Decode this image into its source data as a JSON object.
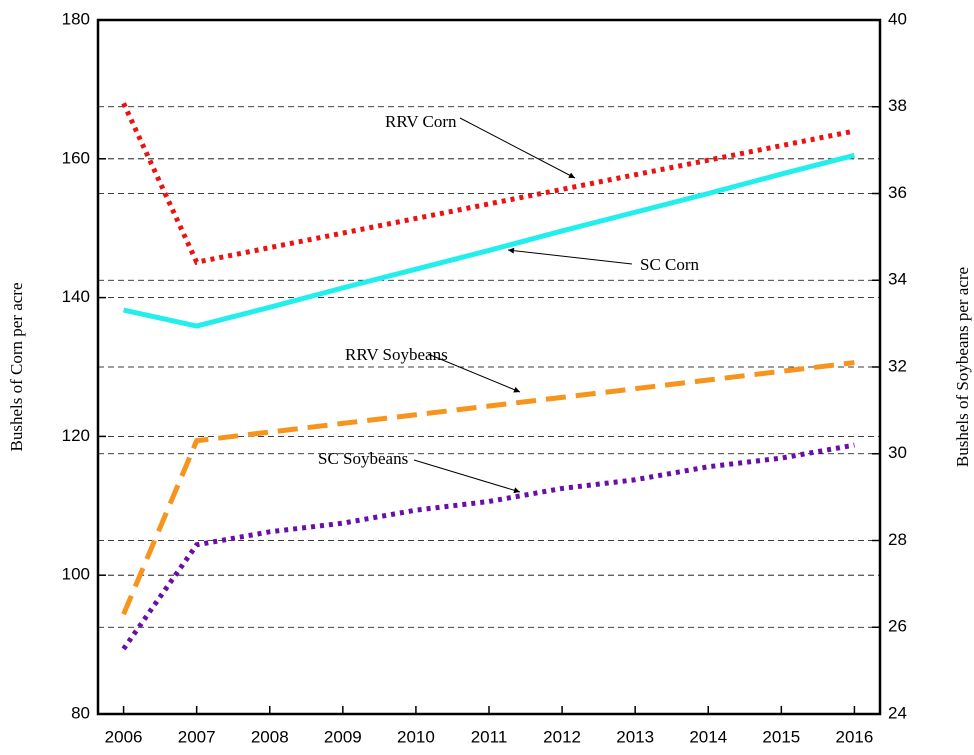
{
  "chart_data": {
    "type": "line",
    "ylabel": "Bushels of Corn per acre",
    "y2label": "Bushels of Soybeans per acre",
    "x": [
      2006,
      2007,
      2008,
      2009,
      2010,
      2011,
      2012,
      2013,
      2014,
      2015,
      2016
    ],
    "xlim": [
      2005.65,
      2016.35
    ],
    "xticks": [
      2006,
      2007,
      2008,
      2009,
      2010,
      2011,
      2012,
      2013,
      2014,
      2015,
      2016
    ],
    "ylim": [
      80,
      180
    ],
    "yticks": [
      80,
      100,
      120,
      140,
      160,
      180
    ],
    "y2lim": [
      24,
      40
    ],
    "y2ticks": [
      24,
      26,
      28,
      30,
      32,
      34,
      36,
      38,
      40
    ],
    "grid": true,
    "series": [
      {
        "name": "RRV Corn",
        "color": "#ee1111",
        "line_style": "dotted",
        "axis": "y",
        "values": [
          168.0,
          145.1,
          147.2,
          149.3,
          151.4,
          153.5,
          155.6,
          157.7,
          159.8,
          161.9,
          164.0
        ]
      },
      {
        "name": "SC Corn",
        "color": "#22eeee",
        "line_style": "solid",
        "axis": "y",
        "values": [
          138.2,
          135.9,
          138.6,
          141.4,
          144.1,
          146.8,
          149.6,
          152.3,
          155.0,
          157.8,
          160.5
        ]
      },
      {
        "name": "RRV Soybeans",
        "color": "#f7941d",
        "line_style": "dashed",
        "axis": "y2",
        "values": [
          26.3,
          30.3,
          30.5,
          30.7,
          30.9,
          31.1,
          31.3,
          31.5,
          31.7,
          31.9,
          32.1
        ]
      },
      {
        "name": "SC Soybeans",
        "color": "#6a0dad",
        "line_style": "dotted",
        "axis": "y2",
        "values": [
          25.5,
          27.9,
          28.2,
          28.4,
          28.7,
          28.9,
          29.2,
          29.4,
          29.7,
          29.9,
          30.2
        ]
      }
    ]
  }
}
